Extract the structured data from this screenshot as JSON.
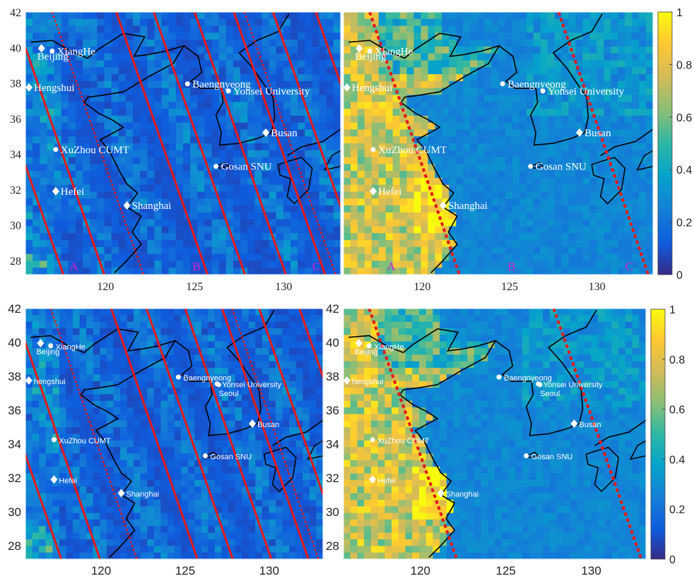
{
  "panels": [
    {
      "id": "top-left",
      "tracks": "multi",
      "font": "serif",
      "y_ticks": [
        "42",
        "40",
        "38",
        "36",
        "34",
        "32",
        "30",
        "28"
      ],
      "x_ticks": [
        "120",
        "125",
        "130"
      ],
      "regions": [
        "A",
        "B",
        "C"
      ],
      "sites": [
        {
          "name": "Beijing",
          "marker": "diamond"
        },
        {
          "name": "XiangHe",
          "marker": "dot"
        },
        {
          "name": "Hengshui",
          "marker": "diamond"
        },
        {
          "name": "Baengnyeong",
          "marker": "dot"
        },
        {
          "name": "Yonsei University",
          "marker": "dot"
        },
        {
          "name": "Busan",
          "marker": "diamond"
        },
        {
          "name": "XuZhou CUMT",
          "marker": "dot"
        },
        {
          "name": "Gosan SNU",
          "marker": "dot"
        },
        {
          "name": "Hefei",
          "marker": "diamond"
        },
        {
          "name": "Shanghai",
          "marker": "diamond"
        }
      ]
    },
    {
      "id": "top-right",
      "tracks": "two",
      "font": "serif",
      "x_ticks": [
        "120",
        "125",
        "130"
      ],
      "regions": [
        "A",
        "B",
        "C"
      ],
      "sites": [
        {
          "name": "Beijing",
          "marker": "diamond"
        },
        {
          "name": "XiangHe",
          "marker": "dot"
        },
        {
          "name": "Hengshui",
          "marker": "diamond"
        },
        {
          "name": "Baengnyeong",
          "marker": "dot"
        },
        {
          "name": "Yonsei University",
          "marker": "dot"
        },
        {
          "name": "Busan",
          "marker": "diamond"
        },
        {
          "name": "XuZhou CUMT",
          "marker": "dot"
        },
        {
          "name": "Gosan SNU",
          "marker": "dot"
        },
        {
          "name": "Hefei",
          "marker": "diamond"
        },
        {
          "name": "Shanghai",
          "marker": "diamond"
        }
      ]
    },
    {
      "id": "bottom-left",
      "tracks": "multi",
      "font": "sans",
      "y_ticks": [
        "42",
        "40",
        "38",
        "36",
        "34",
        "32",
        "30",
        "28"
      ],
      "x_ticks": [
        "120",
        "125",
        "130"
      ],
      "sites": [
        {
          "name": "Beijing",
          "marker": "diamond"
        },
        {
          "name": "XiangHe",
          "marker": "dot"
        },
        {
          "name": "hengshui",
          "marker": "diamond"
        },
        {
          "name": "Baengnyeong",
          "marker": "dot"
        },
        {
          "name": "Yonsei University",
          "marker": "dot"
        },
        {
          "name": "Seoul",
          "marker": "dot"
        },
        {
          "name": "Busan",
          "marker": "diamond"
        },
        {
          "name": "XuZhou CUMT",
          "marker": "dot"
        },
        {
          "name": "Gosan SNU",
          "marker": "dot"
        },
        {
          "name": "Hefei",
          "marker": "diamond"
        },
        {
          "name": "Shanghai",
          "marker": "diamond"
        }
      ]
    },
    {
      "id": "bottom-right",
      "tracks": "two",
      "font": "sans",
      "y_ticks": [
        "42",
        "40",
        "38",
        "36",
        "34",
        "32",
        "30",
        "28"
      ],
      "x_ticks": [
        "120",
        "125",
        "130"
      ],
      "sites": [
        {
          "name": "Beijing",
          "marker": "diamond"
        },
        {
          "name": "XiangHe",
          "marker": "dot"
        },
        {
          "name": "hengshui",
          "marker": "diamond"
        },
        {
          "name": "Baengnyeong",
          "marker": "dot"
        },
        {
          "name": "Yonsei University",
          "marker": "dot"
        },
        {
          "name": "Seoul",
          "marker": "dot"
        },
        {
          "name": "Busan",
          "marker": "diamond"
        },
        {
          "name": "XuZhou CUMT",
          "marker": "dot"
        },
        {
          "name": "Gosan SNU",
          "marker": "dot"
        },
        {
          "name": "Hefei",
          "marker": "diamond"
        },
        {
          "name": "Shanghai",
          "marker": "diamond"
        }
      ]
    }
  ],
  "colorbar": {
    "ticks": [
      "1",
      "0.8",
      "0.6",
      "0.4",
      "0.2",
      "0"
    ],
    "colors": [
      "#352a87",
      "#0f5cdd",
      "#1481d6",
      "#06a4ca",
      "#2eb7a4",
      "#87bf77",
      "#d1bb59",
      "#fec832",
      "#f9fb0e"
    ]
  },
  "overlay_colors": {
    "track": "#e21b1b",
    "coast": "#000000",
    "site": "#ffffff",
    "region_label": "#d020d0"
  }
}
